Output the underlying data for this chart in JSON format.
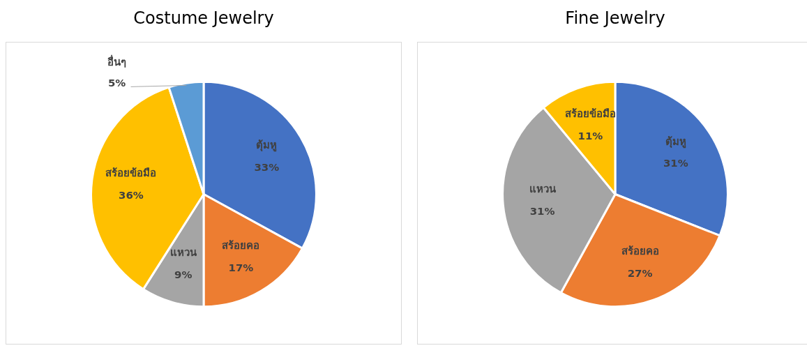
{
  "chart_data": [
    {
      "type": "pie",
      "title": "Costume Jewelry",
      "categories": [
        "ตุ้มหู",
        "สร้อยคอ",
        "แหวน",
        "สร้อยข้อมือ",
        "อื่นๆ"
      ],
      "values": [
        33,
        17,
        9,
        36,
        5
      ],
      "value_labels": [
        "33%",
        "17%",
        "9%",
        "36%",
        "5%"
      ],
      "colors": [
        "#4472c4",
        "#ed7d31",
        "#a5a5a5",
        "#ffc000",
        "#5b9bd5"
      ],
      "legend": false
    },
    {
      "type": "pie",
      "title": "Fine Jewelry",
      "categories": [
        "ตุ้มหู",
        "สร้อยคอ",
        "แหวน",
        "สร้อยข้อมือ"
      ],
      "values": [
        31,
        27,
        31,
        11
      ],
      "value_labels": [
        "31%",
        "27%",
        "31%",
        "11%"
      ],
      "colors": [
        "#4472c4",
        "#ed7d31",
        "#a5a5a5",
        "#ffc000"
      ],
      "legend": false
    }
  ]
}
